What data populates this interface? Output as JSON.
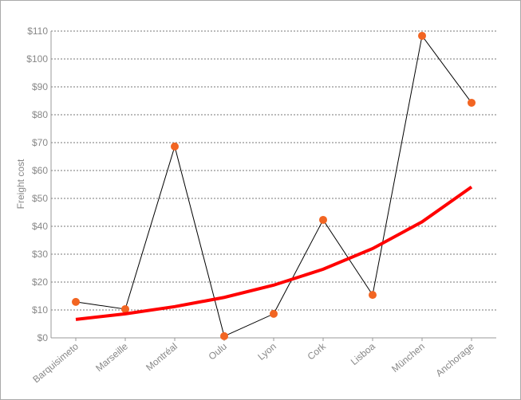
{
  "chart_data": {
    "type": "line",
    "y_label": "Freight cost",
    "categories": [
      "Barquisimeto",
      "Marseille",
      "Montréal",
      "Oulu",
      "Lyon",
      "Cork",
      "Lisboa",
      "München",
      "Anchorage"
    ],
    "series": [
      {
        "color": "#000000",
        "marker_color": "#f26522",
        "values": [
          12.9,
          10.3,
          68.6,
          0.6,
          8.6,
          42.3,
          15.4,
          108.3,
          84.3
        ]
      },
      {
        "color": "#ff0000",
        "trendline": true,
        "values": [
          6.6,
          8.6,
          11.2,
          14.5,
          18.9,
          24.6,
          32.0,
          41.6,
          54.1
        ]
      }
    ],
    "ylim": [
      0,
      110
    ],
    "yticks": [
      {
        "value": 0,
        "label": "$0"
      },
      {
        "value": 10,
        "label": "$10"
      },
      {
        "value": 20,
        "label": "$20"
      },
      {
        "value": 30,
        "label": "$30"
      },
      {
        "value": 40,
        "label": "$40"
      },
      {
        "value": 50,
        "label": "$50"
      },
      {
        "value": 60,
        "label": "$60"
      },
      {
        "value": 70,
        "label": "$70"
      },
      {
        "value": 80,
        "label": "$80"
      },
      {
        "value": 90,
        "label": "$90"
      },
      {
        "value": 100,
        "label": "$100"
      },
      {
        "value": 110,
        "label": "$110"
      }
    ],
    "grid": true
  }
}
